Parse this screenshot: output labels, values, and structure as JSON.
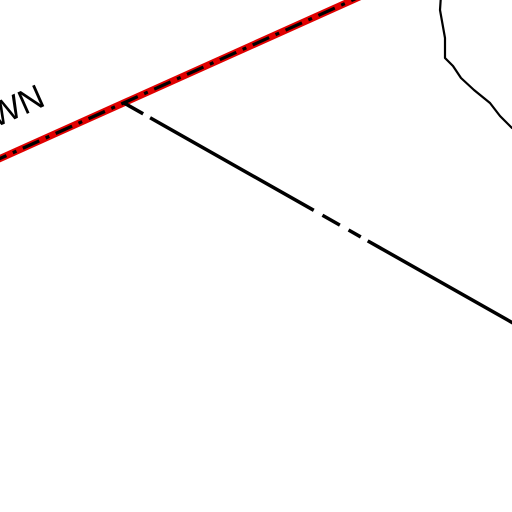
{
  "map": {
    "background": "#ffffff",
    "boundary_line_color": "#e00000",
    "boundary_dash_color": "#000000",
    "secondary_line_color": "#000000",
    "contour_line_color": "#000000",
    "labels": {
      "partial_name": "WN"
    }
  }
}
